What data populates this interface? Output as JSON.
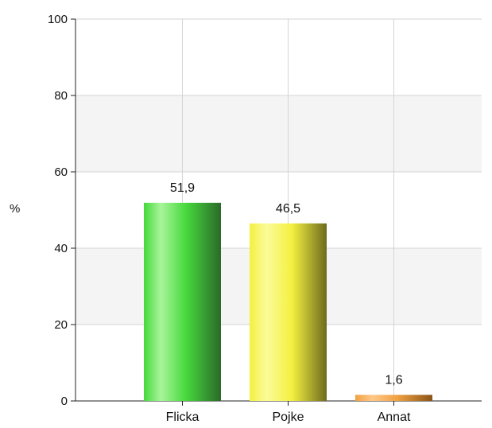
{
  "chart_data": {
    "type": "bar",
    "ylabel": "%",
    "ylim": [
      0,
      100
    ],
    "yticks": [
      0,
      20,
      40,
      60,
      80,
      100
    ],
    "grid": true,
    "legend": "none",
    "bands": "alternating light gray",
    "categories": [
      "Flicka",
      "Pojke",
      "Annat"
    ],
    "values": [
      51.9,
      46.5,
      1.6
    ],
    "value_labels": [
      "51,9",
      "46,5",
      "1,6"
    ],
    "colors": [
      {
        "light": "#a8f59a",
        "base": "#46d83c",
        "dark": "#2a6a2a"
      },
      {
        "light": "#fbfb9a",
        "base": "#f4f040",
        "dark": "#6e6a1e"
      },
      {
        "light": "#ffc888",
        "base": "#f0a040",
        "dark": "#8a5418"
      }
    ]
  }
}
